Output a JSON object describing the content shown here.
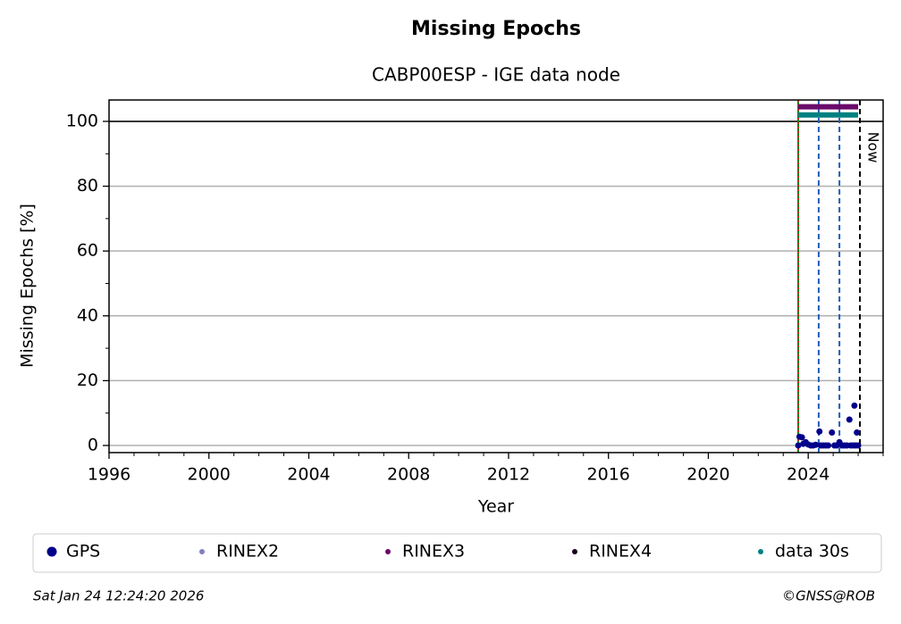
{
  "chart_data": {
    "type": "scatter",
    "title": "Missing Epochs",
    "subtitle": "CABP00ESP - IGE data node",
    "x_label": "Year",
    "y_label": "Missing Epochs [%]",
    "xlim": [
      1996,
      2027
    ],
    "ylim": [
      -2.2,
      106.6
    ],
    "xticks": [
      1996,
      2000,
      2004,
      2008,
      2012,
      2016,
      2020,
      2024
    ],
    "xminor": [
      1997,
      1998,
      1999,
      2001,
      2002,
      2003,
      2005,
      2006,
      2007,
      2009,
      2010,
      2011,
      2013,
      2014,
      2015,
      2017,
      2018,
      2019,
      2021,
      2022,
      2023,
      2025,
      2026,
      2027
    ],
    "yticks": [
      0,
      20,
      40,
      60,
      80,
      100
    ],
    "yminor": [
      10,
      30,
      50,
      70,
      90
    ],
    "grid": true,
    "legend": "bottom",
    "hlines": [
      {
        "y": 100,
        "color": "#000000"
      }
    ],
    "vlines": [
      {
        "x": 2023.6,
        "color": "#008000",
        "dash": "none"
      },
      {
        "x": 2023.6,
        "color": "#d62728",
        "dash": "2,3"
      },
      {
        "x": 2024.42,
        "color": "#1f5fb4",
        "dash": "6,4"
      },
      {
        "x": 2025.25,
        "color": "#1f5fb4",
        "dash": "6,4"
      },
      {
        "x": 2026.07,
        "color": "#000000",
        "dash": "6,4"
      }
    ],
    "annotation": {
      "text": "Now",
      "x": 2026.07,
      "y": 92
    },
    "series": [
      {
        "name": "GPS",
        "color": "#00008b",
        "kind": "points",
        "x": [
          2023.6,
          2023.65,
          2023.75,
          2023.8,
          2023.9,
          2024.0,
          2024.1,
          2024.2,
          2024.3,
          2024.45,
          2024.5,
          2024.6,
          2024.7,
          2024.8,
          2024.95,
          2025.05,
          2025.15,
          2025.25,
          2025.35,
          2025.45,
          2025.55,
          2025.65,
          2025.7,
          2025.8,
          2025.85,
          2025.9,
          2025.95,
          2026.0
        ],
        "values": [
          0,
          2.7,
          2.5,
          0.5,
          1,
          0.3,
          0,
          0,
          0.2,
          4.3,
          0,
          0,
          0,
          0,
          4,
          0,
          0,
          1,
          0,
          0,
          0,
          8,
          0,
          0,
          12.3,
          0,
          4,
          0
        ]
      },
      {
        "name": "RINEX2",
        "color": "#8080c0",
        "kind": "points",
        "x": [],
        "values": []
      },
      {
        "name": "RINEX3",
        "color": "#6a0a6a",
        "kind": "line",
        "x": [
          2023.6,
          2026.0
        ],
        "values": [
          104.5,
          104.5
        ]
      },
      {
        "name": "RINEX4",
        "color": "#1a0020",
        "kind": "points",
        "x": [],
        "values": []
      },
      {
        "name": "data 30s",
        "color": "#008080",
        "kind": "line",
        "x": [
          2023.6,
          2026.0
        ],
        "values": [
          102,
          102
        ]
      }
    ],
    "footer_left": "Sat Jan 24 12:24:20 2026",
    "footer_right": "©GNSS@ROB"
  }
}
